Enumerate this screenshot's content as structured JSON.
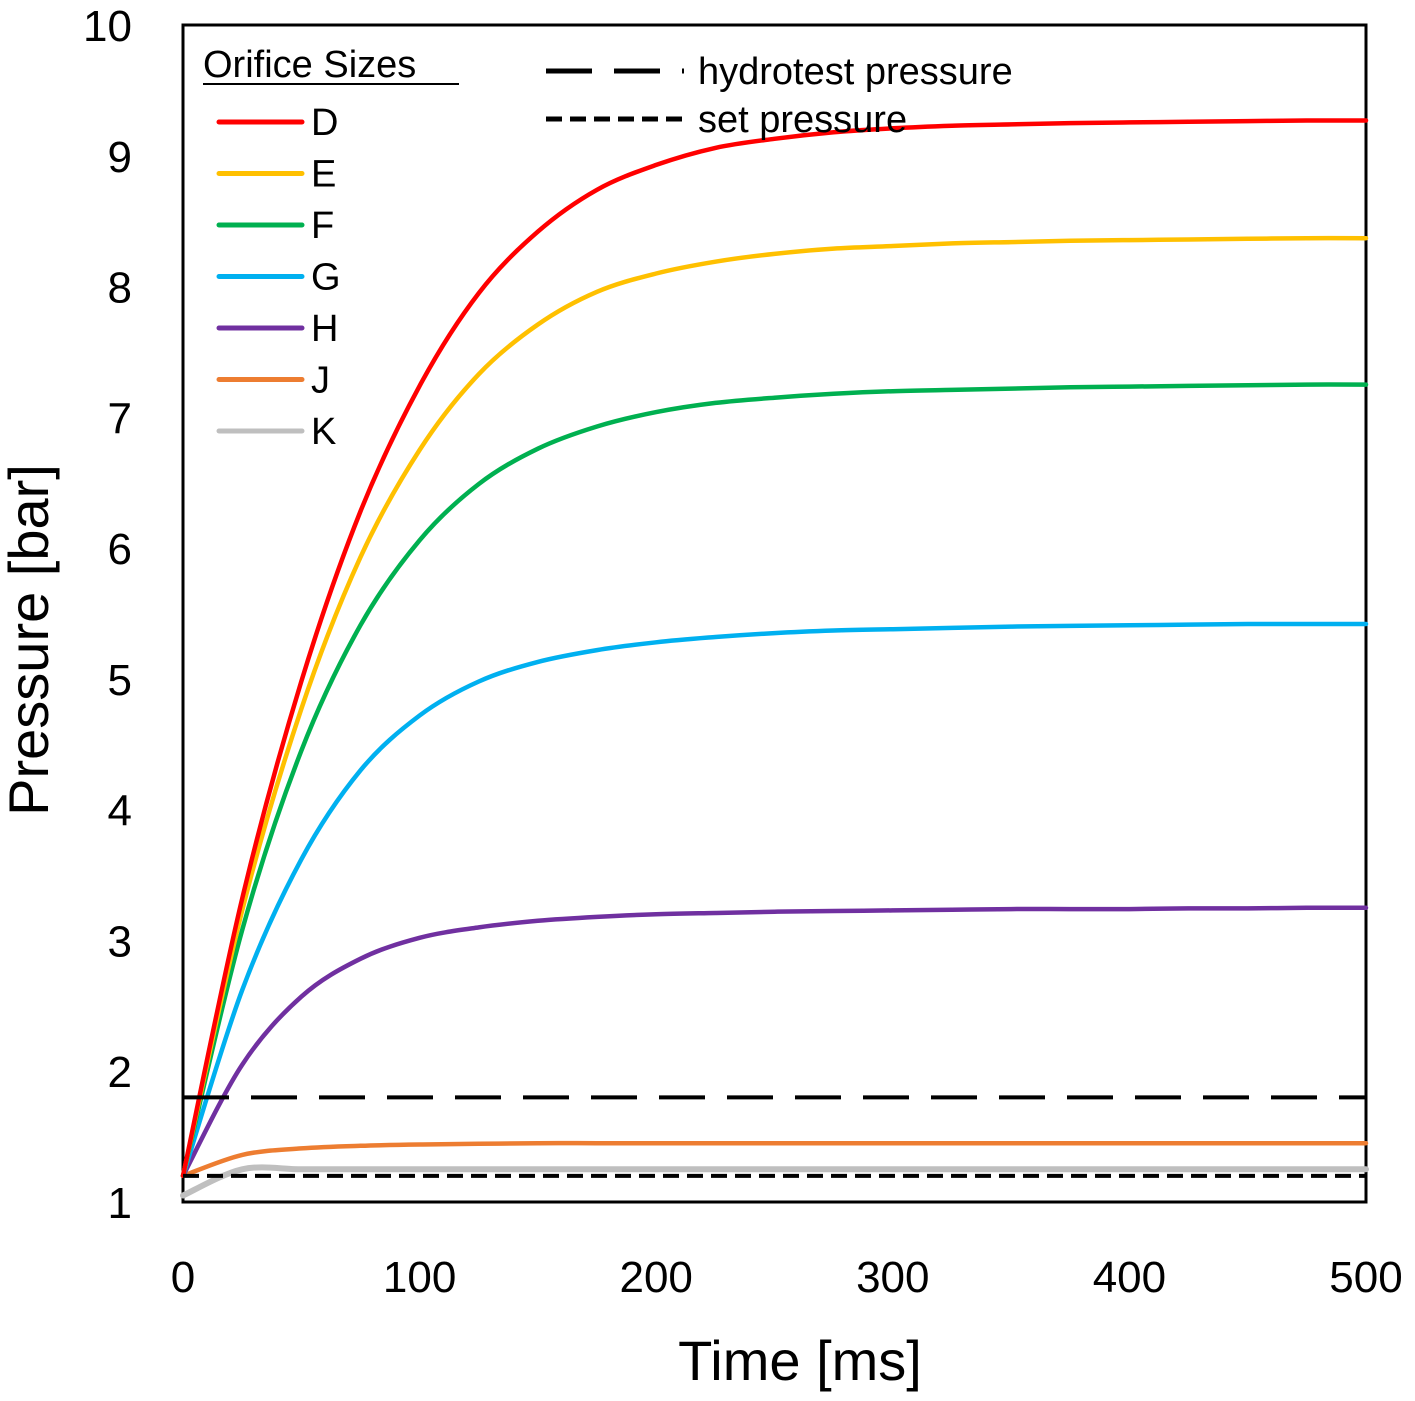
{
  "chart_data": {
    "type": "line",
    "title": "",
    "xlabel": "Time [ms]",
    "ylabel": "Pressure [bar]",
    "xlim": [
      0,
      500
    ],
    "ylim": [
      1,
      10
    ],
    "xticks": [
      0,
      100,
      200,
      300,
      400,
      500
    ],
    "yticks": [
      1,
      2,
      3,
      4,
      5,
      6,
      7,
      8,
      9,
      10
    ],
    "grid": false,
    "legend_title": "Orifice Sizes",
    "legend_position": "top-left",
    "x": [
      0,
      25,
      50,
      75,
      100,
      125,
      150,
      175,
      200,
      225,
      250,
      275,
      300,
      325,
      350,
      375,
      400,
      425,
      450,
      475,
      500
    ],
    "series": [
      {
        "name": "D",
        "color": "#ff0000",
        "values": [
          1.2,
          3.32,
          4.98,
          6.28,
          7.24,
          7.95,
          8.42,
          8.74,
          8.93,
          9.06,
          9.13,
          9.18,
          9.21,
          9.23,
          9.24,
          9.25,
          9.255,
          9.26,
          9.265,
          9.27,
          9.27
        ]
      },
      {
        "name": "E",
        "color": "#ffc000",
        "values": [
          1.2,
          3.23,
          4.77,
          5.93,
          6.75,
          7.33,
          7.71,
          7.96,
          8.1,
          8.19,
          8.25,
          8.29,
          8.31,
          8.33,
          8.34,
          8.35,
          8.355,
          8.36,
          8.365,
          8.37,
          8.37
        ]
      },
      {
        "name": "F",
        "color": "#00b050",
        "values": [
          1.2,
          3.08,
          4.45,
          5.41,
          6.06,
          6.49,
          6.76,
          6.93,
          7.04,
          7.11,
          7.15,
          7.18,
          7.2,
          7.21,
          7.22,
          7.23,
          7.235,
          7.24,
          7.245,
          7.25,
          7.25
        ]
      },
      {
        "name": "G",
        "color": "#00b0f0",
        "values": [
          1.2,
          2.62,
          3.62,
          4.3,
          4.72,
          4.98,
          5.13,
          5.22,
          5.28,
          5.32,
          5.35,
          5.37,
          5.38,
          5.39,
          5.4,
          5.405,
          5.41,
          5.415,
          5.42,
          5.42,
          5.42
        ]
      },
      {
        "name": "H",
        "color": "#7030a0",
        "values": [
          1.2,
          2.05,
          2.57,
          2.86,
          3.02,
          3.1,
          3.15,
          3.18,
          3.2,
          3.21,
          3.22,
          3.225,
          3.23,
          3.235,
          3.24,
          3.24,
          3.24,
          3.245,
          3.245,
          3.25,
          3.25
        ]
      },
      {
        "name": "J",
        "color": "#ed7d31",
        "values": [
          1.2,
          1.36,
          1.41,
          1.43,
          1.44,
          1.445,
          1.45,
          1.45,
          1.45,
          1.45,
          1.45,
          1.45,
          1.45,
          1.45,
          1.45,
          1.45,
          1.45,
          1.45,
          1.45,
          1.45,
          1.45
        ]
      },
      {
        "name": "K",
        "color": "#bfbfbf",
        "values": [
          1.05,
          1.25,
          1.25,
          1.25,
          1.25,
          1.25,
          1.25,
          1.25,
          1.25,
          1.25,
          1.25,
          1.25,
          1.25,
          1.25,
          1.25,
          1.25,
          1.25,
          1.25,
          1.25,
          1.25,
          1.25
        ]
      }
    ],
    "reference_lines": [
      {
        "name": "hydrotest pressure",
        "value": 1.8,
        "style": "long-dash",
        "color": "#000000"
      },
      {
        "name": "set pressure",
        "value": 1.2,
        "style": "short-dash",
        "color": "#000000"
      }
    ]
  }
}
